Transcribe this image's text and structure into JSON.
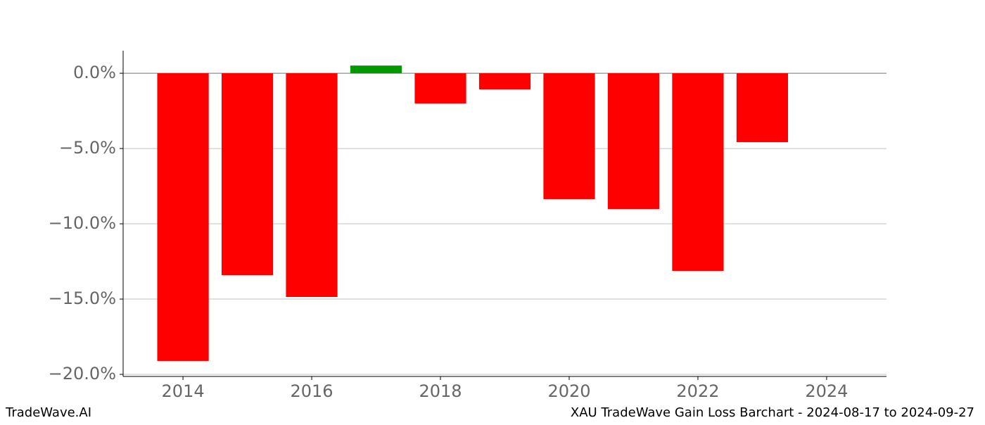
{
  "chart_data": {
    "type": "bar",
    "x": [
      2014,
      2015,
      2016,
      2017,
      2018,
      2019,
      2020,
      2021,
      2022,
      2023
    ],
    "values": [
      -19.11,
      -13.41,
      -14.86,
      0.51,
      -2.01,
      -1.07,
      -8.36,
      -9.02,
      -13.13,
      -4.58
    ],
    "colors": [
      "#ff0000",
      "#ff0000",
      "#ff0000",
      "#009900",
      "#ff0000",
      "#ff0000",
      "#ff0000",
      "#ff0000",
      "#ff0000",
      "#ff0000"
    ],
    "xlim": [
      2013.07,
      2024.93
    ],
    "xticks": [
      2014,
      2016,
      2018,
      2020,
      2022,
      2024
    ],
    "ylim": [
      -20.14,
      1.5
    ],
    "yticks": [
      {
        "value": 0,
        "label": "0.0%"
      },
      {
        "value": -5,
        "label": "−5.0%"
      },
      {
        "value": -10,
        "label": "−10.0%"
      },
      {
        "value": -15,
        "label": "−15.0%"
      },
      {
        "value": -20,
        "label": "−20.0%"
      }
    ],
    "grid": true,
    "footer_left": "TradeWave.AI",
    "footer_right": "XAU TradeWave Gain Loss Barchart - 2024-08-17 to 2024-09-27"
  }
}
